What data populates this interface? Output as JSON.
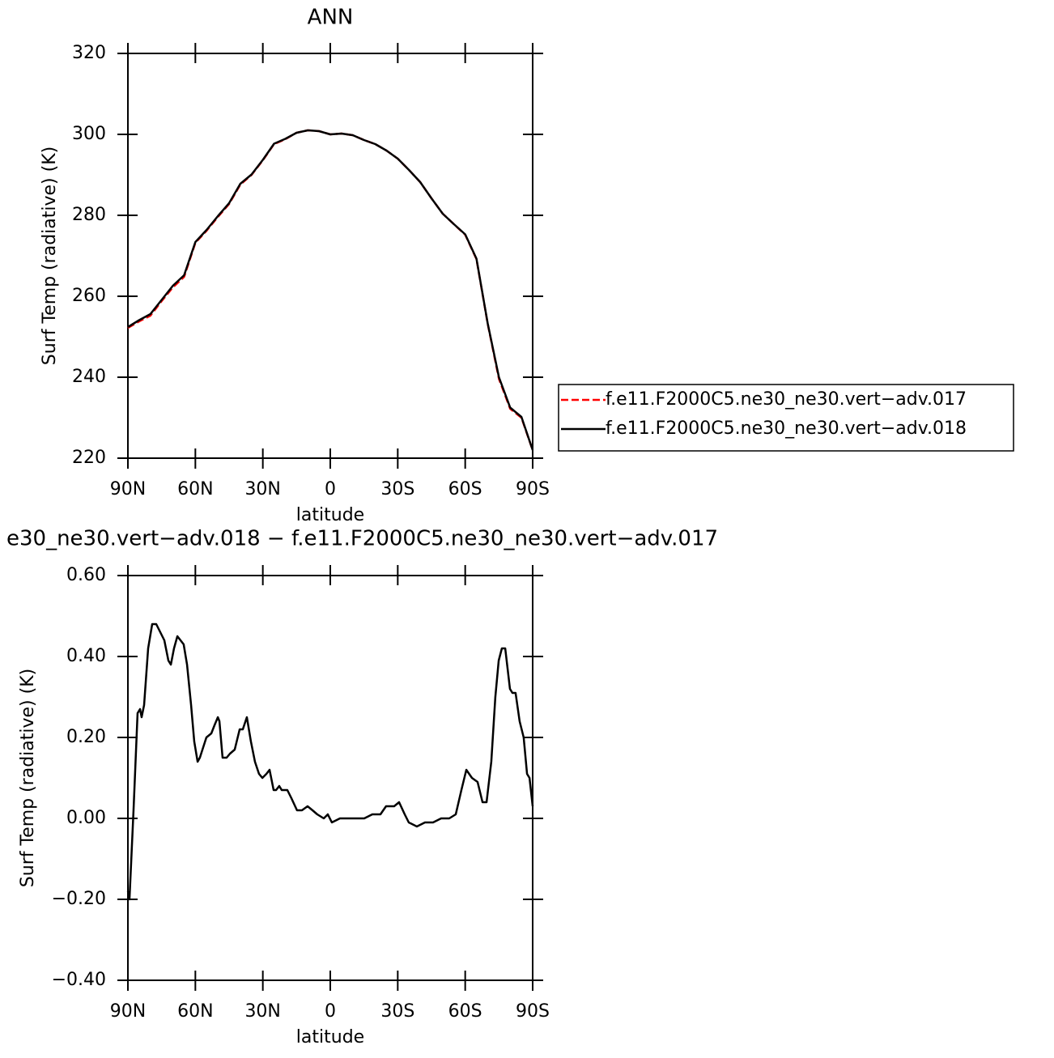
{
  "chart_data": [
    {
      "type": "line",
      "title": "ANN",
      "xlabel": "latitude",
      "ylabel": "Surf Temp (radiative) (K)",
      "xlim": [
        90,
        -90
      ],
      "xticks": [
        {
          "value": 90,
          "label": "90N"
        },
        {
          "value": 60,
          "label": "60N"
        },
        {
          "value": 30,
          "label": "30N"
        },
        0,
        {
          "value": -30,
          "label": "30S"
        },
        {
          "value": -60,
          "label": "60S"
        },
        {
          "value": -90,
          "label": "90S"
        }
      ],
      "ylim": [
        220,
        320
      ],
      "yticks": [
        220,
        240,
        260,
        280,
        300,
        320
      ],
      "legend": "right",
      "x": [
        90,
        85,
        80,
        75,
        70,
        65,
        60,
        55,
        50,
        45,
        40,
        35,
        30,
        25,
        20,
        15,
        10,
        5,
        0,
        -5,
        -10,
        -15,
        -20,
        -25,
        -30,
        -35,
        -40,
        -45,
        -50,
        -55,
        -60,
        -65,
        -70,
        -75,
        -80,
        -85,
        -90
      ],
      "series": [
        {
          "name": "f.e11.F2000C5.ne30_ne30.vert−adv.017",
          "color": "#ff0000",
          "dashed": true,
          "values": [
            252.2,
            253.8,
            255.2,
            258.8,
            262.2,
            264.8,
            273.2,
            276.2,
            279.6,
            282.8,
            287.6,
            290,
            293.6,
            297.6,
            298.8,
            300.4,
            301,
            300.8,
            300,
            300.2,
            299.8,
            298.6,
            297.6,
            296,
            294,
            291.2,
            288.2,
            284.2,
            280.4,
            277.8,
            275.2,
            269.2,
            253.2,
            239.6,
            232.2,
            230,
            222
          ]
        },
        {
          "name": "f.e11.F2000C5.ne30_ne30.vert−adv.018",
          "color": "#000000",
          "dashed": false,
          "values": [
            252.4,
            254.1,
            255.6,
            259.1,
            262.6,
            265.2,
            273.4,
            276.4,
            279.8,
            283,
            287.8,
            290.1,
            293.7,
            297.7,
            298.9,
            300.4,
            301,
            300.8,
            300,
            300.2,
            299.8,
            298.6,
            297.6,
            296,
            294,
            291.2,
            288.2,
            284.2,
            280.4,
            277.8,
            275.3,
            269.3,
            253.3,
            240,
            232.5,
            230.2,
            222
          ]
        }
      ]
    },
    {
      "type": "line",
      "title": "e30_ne30.vert−adv.018 − f.e11.F2000C5.ne30_ne30.vert−adv.017",
      "xlabel": "latitude",
      "ylabel": "Surf Temp (radiative) (K)",
      "xlim": [
        90,
        -90
      ],
      "xticks": [
        {
          "value": 90,
          "label": "90N"
        },
        {
          "value": 60,
          "label": "60N"
        },
        {
          "value": 30,
          "label": "30N"
        },
        0,
        {
          "value": -30,
          "label": "30S"
        },
        {
          "value": -60,
          "label": "60S"
        },
        {
          "value": -90,
          "label": "90S"
        }
      ],
      "ylim": [
        -0.4,
        0.6
      ],
      "yticks": [
        {
          "value": -0.4,
          "label": "−0.40"
        },
        {
          "value": -0.2,
          "label": "−0.20"
        },
        {
          "value": 0,
          "label": "0.00"
        },
        {
          "value": 0.2,
          "label": "0.20"
        },
        {
          "value": 0.4,
          "label": "0.40"
        },
        {
          "value": 0.6,
          "label": "0.60"
        }
      ],
      "x": [
        90,
        89.3,
        87.5,
        85.7,
        84.6,
        83.9,
        82.8,
        81,
        79.2,
        77.4,
        75.6,
        73.8,
        72,
        70.9,
        69.5,
        68,
        65.2,
        63.7,
        61.9,
        60.5,
        59,
        58,
        55.1,
        52.9,
        51.5,
        50,
        49.3,
        47.9,
        46.1,
        44.6,
        42.5,
        40.3,
        38.9,
        37.1,
        35.3,
        33.5,
        31.7,
        30.2,
        28.4,
        27,
        25.2,
        24.1,
        22.7,
        21.6,
        19.1,
        17.3,
        14.8,
        12.6,
        10.1,
        7.9,
        5.8,
        2.9,
        1.1,
        -0.7,
        -4.3,
        -7.9,
        -11.5,
        -15.1,
        -18.7,
        -22.3,
        -24.8,
        -26.6,
        -28.4,
        -30.6,
        -33.1,
        -34.9,
        -38.5,
        -42.1,
        -45.7,
        -49.3,
        -52.9,
        -55.8,
        -58.3,
        -60.5,
        -63,
        -65.5,
        -67.7,
        -69.5,
        -71.6,
        -73.4,
        -74.9,
        -76.3,
        -77.8,
        -79.9,
        -81,
        -82.4,
        -84.2,
        -86,
        -87.5,
        -88.6,
        -90
      ],
      "series": [
        {
          "color": "#000000",
          "dashed": false,
          "values": [
            -0.18,
            -0.2,
            0.02,
            0.26,
            0.27,
            0.25,
            0.28,
            0.42,
            0.48,
            0.48,
            0.46,
            0.44,
            0.39,
            0.38,
            0.42,
            0.45,
            0.43,
            0.38,
            0.28,
            0.19,
            0.14,
            0.15,
            0.2,
            0.21,
            0.23,
            0.25,
            0.24,
            0.15,
            0.15,
            0.16,
            0.17,
            0.22,
            0.22,
            0.25,
            0.19,
            0.14,
            0.11,
            0.1,
            0.11,
            0.12,
            0.07,
            0.07,
            0.08,
            0.07,
            0.07,
            0.05,
            0.02,
            0.02,
            0.03,
            0.02,
            0.01,
            0,
            0.01,
            -0.01,
            0,
            0,
            0,
            0,
            0.01,
            0.01,
            0.03,
            0.03,
            0.03,
            0.04,
            0.01,
            -0.01,
            -0.02,
            -0.01,
            -0.01,
            0,
            0,
            0.01,
            0.07,
            0.12,
            0.1,
            0.09,
            0.04,
            0.04,
            0.14,
            0.3,
            0.39,
            0.42,
            0.42,
            0.32,
            0.31,
            0.31,
            0.24,
            0.2,
            0.11,
            0.1,
            0.03
          ]
        }
      ]
    }
  ]
}
